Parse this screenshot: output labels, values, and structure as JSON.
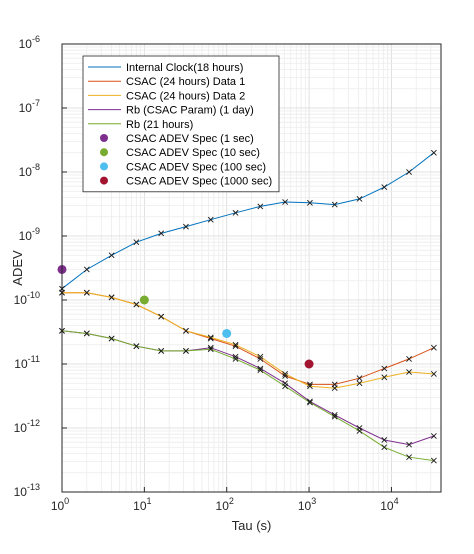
{
  "chart_data": {
    "type": "line",
    "title": "",
    "xlabel": "Tau (s)",
    "ylabel": "ADEV",
    "xscale": "log",
    "yscale": "log",
    "xlim": [
      1,
      40000
    ],
    "ylim": [
      1e-13,
      1e-06
    ],
    "grid": "on (major and minor, log-spaced)",
    "legend_position": "top-left inside",
    "x_tick_labels": [
      {
        "value": 1,
        "base": "10",
        "exp": "0"
      },
      {
        "value": 10,
        "base": "10",
        "exp": "1"
      },
      {
        "value": 100,
        "base": "10",
        "exp": "2"
      },
      {
        "value": 1000,
        "base": "10",
        "exp": "3"
      },
      {
        "value": 10000,
        "base": "10",
        "exp": "4"
      }
    ],
    "y_tick_labels": [
      {
        "value": 1e-13,
        "base": "10",
        "exp": "-13"
      },
      {
        "value": 1e-12,
        "base": "10",
        "exp": "-12"
      },
      {
        "value": 1e-11,
        "base": "10",
        "exp": "-11"
      },
      {
        "value": 1e-10,
        "base": "10",
        "exp": "-10"
      },
      {
        "value": 1e-09,
        "base": "10",
        "exp": "-9"
      },
      {
        "value": 1e-08,
        "base": "10",
        "exp": "-8"
      },
      {
        "value": 1e-07,
        "base": "10",
        "exp": "-7"
      },
      {
        "value": 1e-06,
        "base": "10",
        "exp": "-6"
      }
    ],
    "series": [
      {
        "name": "Internal Clock(18 hours)",
        "color": "#0072BD",
        "x": [
          1,
          2,
          4,
          8,
          16,
          32,
          64,
          128,
          256,
          512,
          1024,
          2048,
          4096,
          8192,
          16384,
          32768
        ],
        "y": [
          1.5e-10,
          3e-10,
          5e-10,
          8e-10,
          1.1e-09,
          1.4e-09,
          1.8e-09,
          2.3e-09,
          2.9e-09,
          3.4e-09,
          3.3e-09,
          3.1e-09,
          3.8e-09,
          5.8e-09,
          1e-08,
          2e-08
        ]
      },
      {
        "name": "CSAC (24 hours) Data 1",
        "color": "#D95319",
        "x": [
          1,
          2,
          4,
          8,
          16,
          32,
          64,
          128,
          256,
          512,
          1024,
          2048,
          4096,
          8192,
          16384,
          32768
        ],
        "y": [
          1.3e-10,
          1.3e-10,
          1.1e-10,
          8.5e-11,
          5.5e-11,
          3.3e-11,
          2.5e-11,
          1.9e-11,
          1.2e-11,
          6.5e-12,
          4.8e-12,
          4.8e-12,
          6e-12,
          8.5e-12,
          1.2e-11,
          1.8e-11
        ]
      },
      {
        "name": "CSAC (24 hours) Data 2",
        "color": "#EDB120",
        "x": [
          1,
          2,
          4,
          8,
          16,
          32,
          64,
          128,
          256,
          512,
          1024,
          2048,
          4096,
          8192,
          16384,
          32768
        ],
        "y": [
          1.3e-10,
          1.3e-10,
          1.1e-10,
          8.5e-11,
          5.5e-11,
          3.3e-11,
          2.6e-11,
          2e-11,
          1.3e-11,
          7e-12,
          4.5e-12,
          4.2e-12,
          5e-12,
          6.2e-12,
          7.5e-12,
          7e-12
        ]
      },
      {
        "name": "Rb (CSAC Param) (1 day)",
        "color": "#7E2F8E",
        "x": [
          1,
          2,
          4,
          8,
          16,
          32,
          64,
          128,
          256,
          512,
          1024,
          2048,
          4096,
          8192,
          16384,
          32768
        ],
        "y": [
          3.3e-11,
          3e-11,
          2.5e-11,
          1.9e-11,
          1.6e-11,
          1.6e-11,
          1.8e-11,
          1.3e-11,
          8.5e-12,
          5e-12,
          2.6e-12,
          1.6e-12,
          1e-12,
          6.5e-13,
          5.5e-13,
          7.5e-13
        ]
      },
      {
        "name": "Rb (21 hours)",
        "color": "#77AC30",
        "x": [
          1,
          2,
          4,
          8,
          16,
          32,
          64,
          128,
          256,
          512,
          1024,
          2048,
          4096,
          8192,
          16384,
          32768
        ],
        "y": [
          3.3e-11,
          3e-11,
          2.5e-11,
          1.9e-11,
          1.6e-11,
          1.6e-11,
          1.7e-11,
          1.2e-11,
          8e-12,
          4.5e-12,
          2.5e-12,
          1.5e-12,
          9e-13,
          5e-13,
          3.5e-13,
          3.1e-13
        ]
      }
    ],
    "spec_points": [
      {
        "name": "CSAC ADEV Spec (1 sec)",
        "x": 1,
        "y": 3e-10,
        "color": "#7E2F8E"
      },
      {
        "name": "CSAC ADEV Spec (10 sec)",
        "x": 10,
        "y": 1e-10,
        "color": "#77AC30"
      },
      {
        "name": "CSAC ADEV Spec (100 sec)",
        "x": 100,
        "y": 3e-11,
        "color": "#4DBEEE"
      },
      {
        "name": "CSAC ADEV Spec (1000 sec)",
        "x": 1000,
        "y": 1e-11,
        "color": "#A2142F"
      }
    ]
  }
}
